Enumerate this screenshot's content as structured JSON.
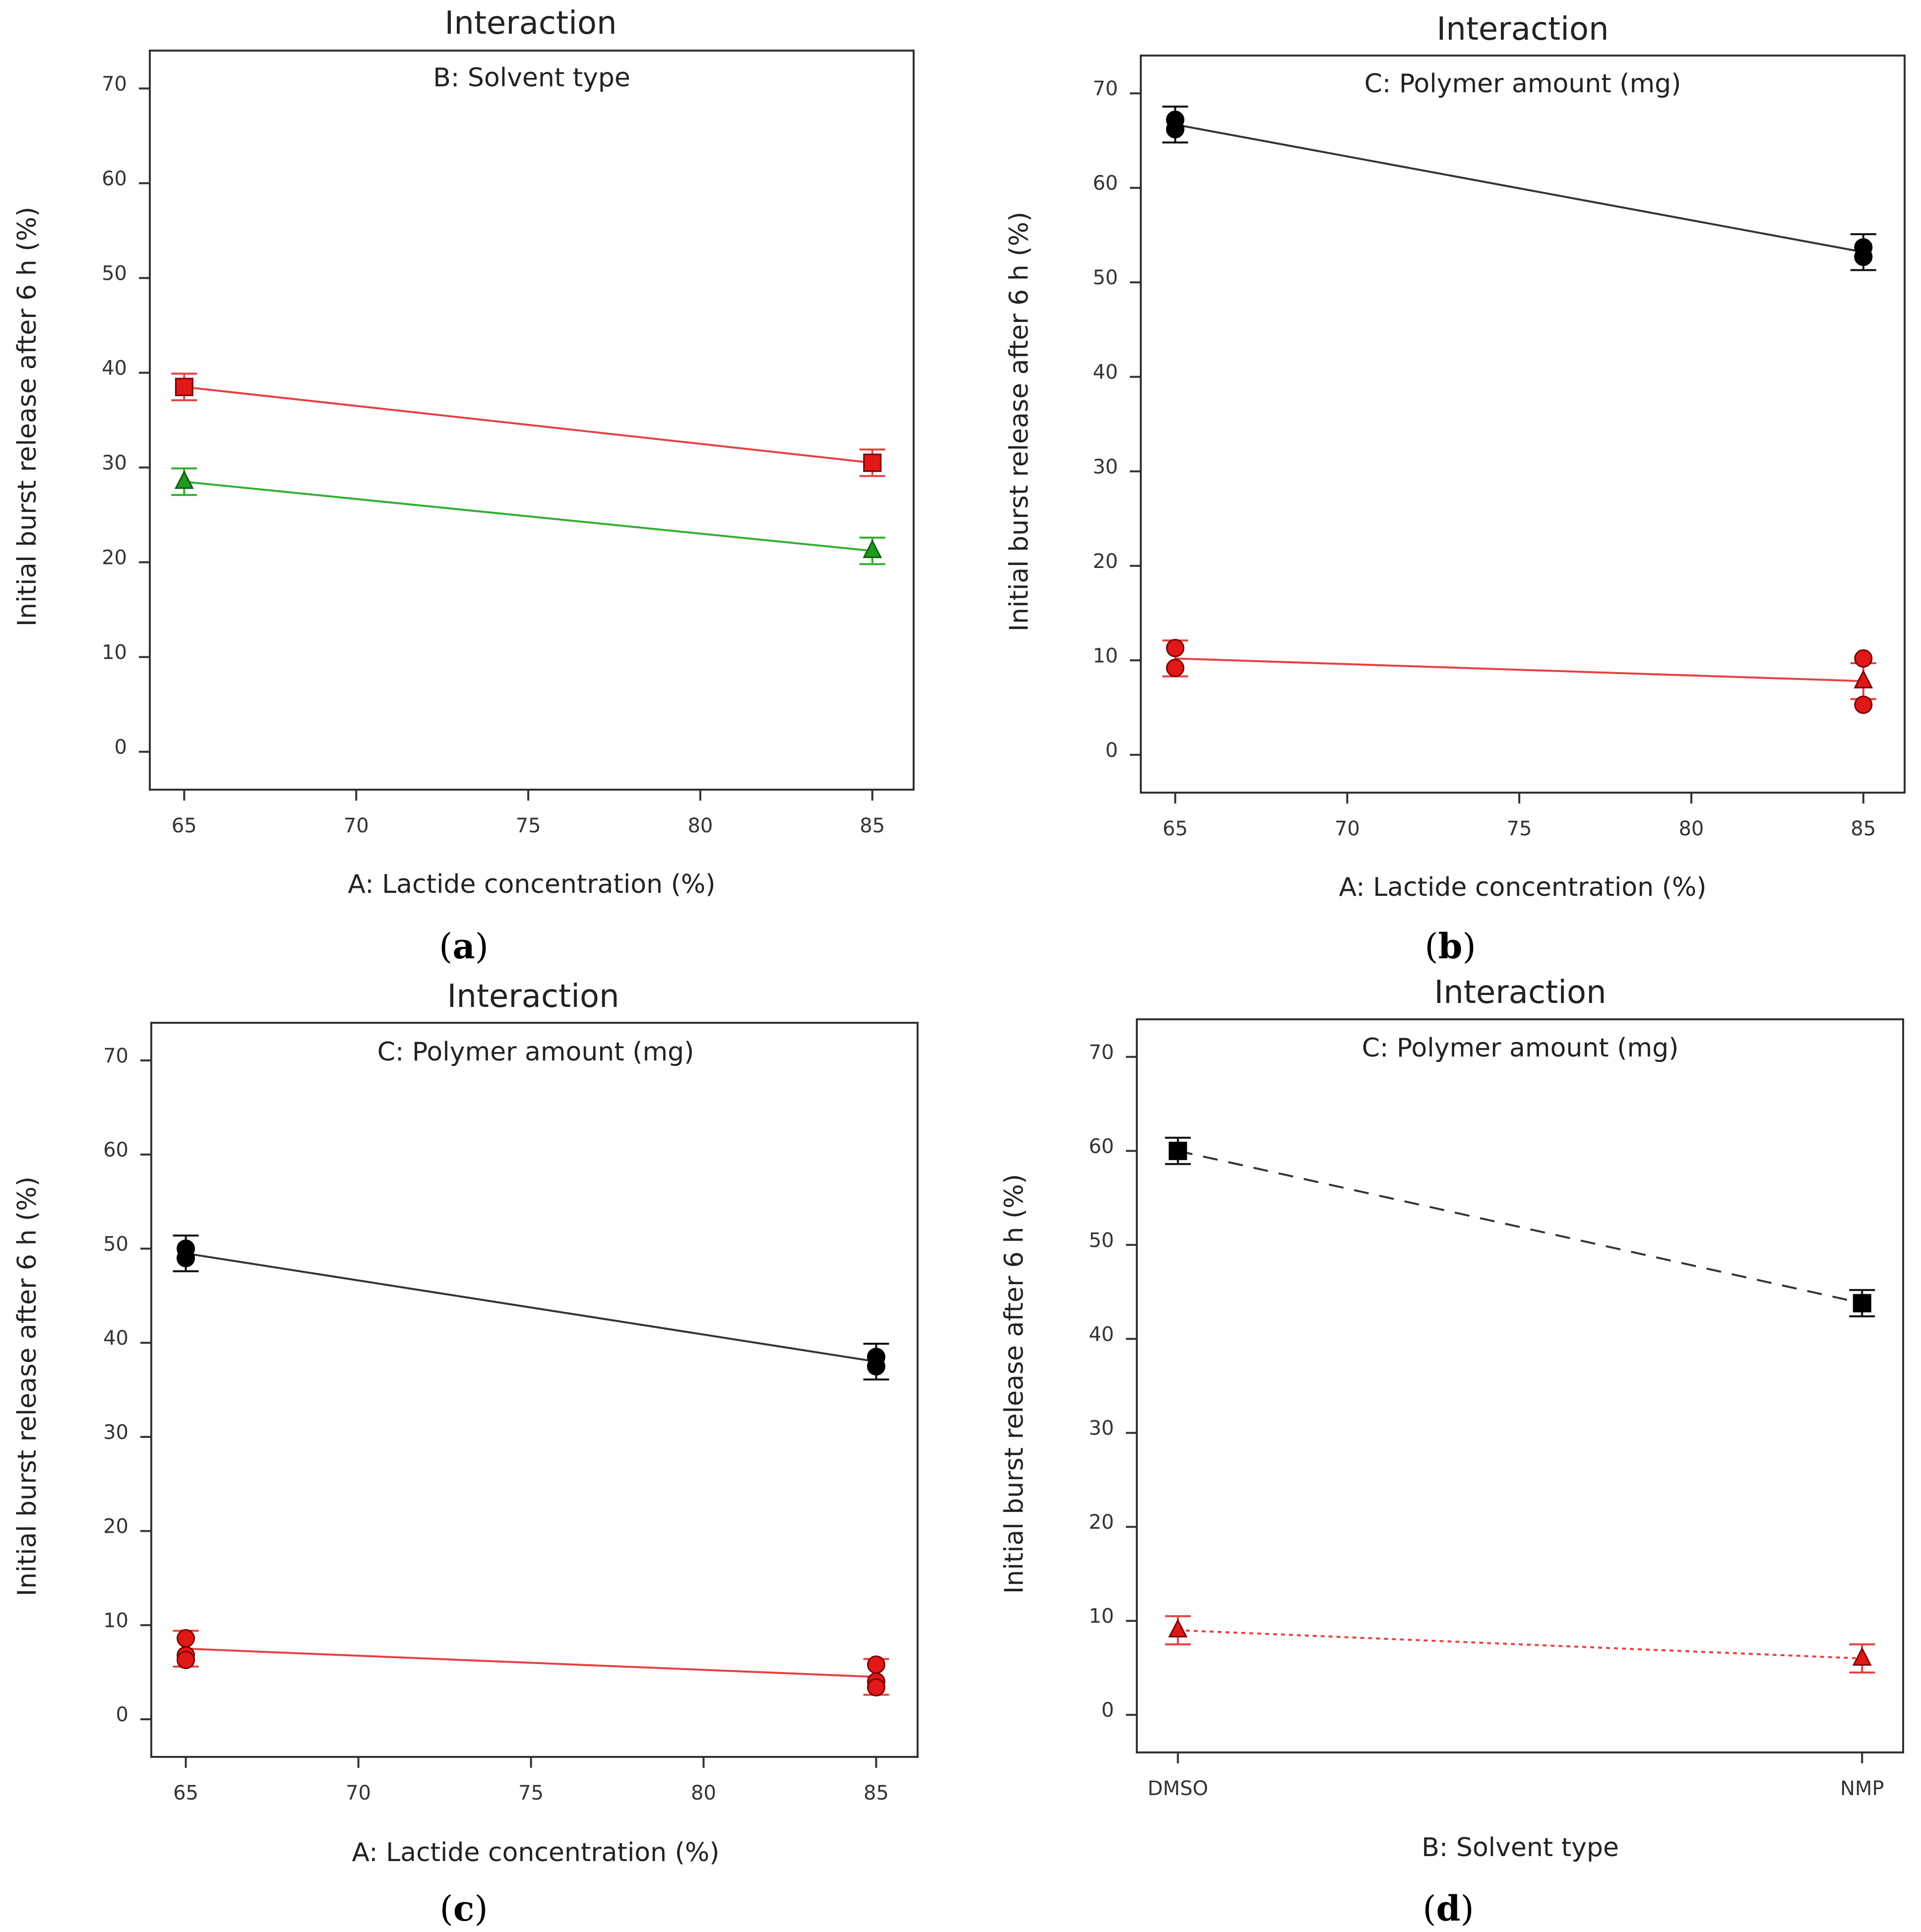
{
  "colors": {
    "black": "#111111",
    "red": "#e84040",
    "red_marker": "#dd1111",
    "green": "#2fb02f",
    "green_marker": "#1a8a1a",
    "grey_line": "#444444"
  },
  "chart_data": [
    {
      "panel": "a",
      "type": "line",
      "title": "Interaction",
      "subtitle": "B: Solvent type",
      "xlabel": "A: Lactide concentration (%)",
      "ylabel": "Initial burst release after 6 h (%)",
      "xlim": [
        64,
        86.2
      ],
      "xticks": [
        65,
        70,
        75,
        80,
        85
      ],
      "xtick_labels": [
        "65",
        "70",
        "75",
        "80",
        "85"
      ],
      "ylim": [
        -4,
        74
      ],
      "yticks": [
        0,
        10,
        20,
        30,
        40,
        50,
        60,
        70
      ],
      "ytick_labels": [
        "0",
        "10",
        "20",
        "30",
        "40",
        "50",
        "60",
        "70"
      ],
      "series": [
        {
          "name": "red",
          "color": "#e84040",
          "marker": "square",
          "dash": "",
          "x": [
            65,
            85
          ],
          "y": [
            38.5,
            30.5
          ],
          "err": [
            1.4,
            1.4
          ],
          "points": [
            {
              "x": 65,
              "y": 38.5
            },
            {
              "x": 85,
              "y": 30.5
            }
          ]
        },
        {
          "name": "green",
          "color": "#2fb02f",
          "marker": "triangle",
          "dash": "",
          "x": [
            65,
            85
          ],
          "y": [
            28.5,
            21.2
          ],
          "err": [
            1.4,
            1.4
          ],
          "points": [
            {
              "x": 65,
              "y": 28.5
            },
            {
              "x": 85,
              "y": 21.2
            }
          ]
        }
      ]
    },
    {
      "panel": "b",
      "type": "line",
      "title": "Interaction",
      "subtitle": "C: Polymer amount (mg)",
      "xlabel": "A: Lactide concentration (%)",
      "ylabel": "Initial burst release after 6 h (%)",
      "xlim": [
        64,
        86.2
      ],
      "xticks": [
        65,
        70,
        75,
        80,
        85
      ],
      "xtick_labels": [
        "65",
        "70",
        "75",
        "80",
        "85"
      ],
      "ylim": [
        -4,
        74
      ],
      "yticks": [
        0,
        10,
        20,
        30,
        40,
        50,
        60,
        70
      ],
      "ytick_labels": [
        "0",
        "10",
        "20",
        "30",
        "40",
        "50",
        "60",
        "70"
      ],
      "series": [
        {
          "name": "black",
          "color": "#111111",
          "marker": "circle",
          "dash": "",
          "x": [
            65,
            85
          ],
          "y": [
            66.7,
            53.2
          ],
          "err": [
            1.9,
            1.9
          ],
          "points": [
            {
              "x": 65,
              "y": 67.2
            },
            {
              "x": 65,
              "y": 66.2
            },
            {
              "x": 85,
              "y": 53.7
            },
            {
              "x": 85,
              "y": 52.7
            }
          ]
        },
        {
          "name": "red",
          "color": "#e84040",
          "marker": "circle",
          "dash": "",
          "x": [
            65,
            85
          ],
          "y": [
            10.2,
            7.8
          ],
          "err": [
            1.9,
            1.9
          ],
          "points": [
            {
              "x": 65,
              "y": 11.3
            },
            {
              "x": 65,
              "y": 9.2
            },
            {
              "x": 85,
              "y": 10.2
            },
            {
              "x": 85,
              "y": 5.3
            }
          ]
        },
        {
          "name": "red-triangle",
          "color": "#e84040",
          "marker": "triangle",
          "dash": "",
          "x": [],
          "y": [],
          "err": [],
          "points": [
            {
              "x": 85,
              "y": 7.8
            }
          ]
        }
      ]
    },
    {
      "panel": "c",
      "type": "line",
      "title": "Interaction",
      "subtitle": "C: Polymer amount (mg)",
      "xlabel": "A: Lactide concentration (%)",
      "ylabel": "Initial burst release after 6 h (%)",
      "xlim": [
        64,
        86.2
      ],
      "xticks": [
        65,
        70,
        75,
        80,
        85
      ],
      "xtick_labels": [
        "65",
        "70",
        "75",
        "80",
        "85"
      ],
      "ylim": [
        -4,
        74
      ],
      "yticks": [
        0,
        10,
        20,
        30,
        40,
        50,
        60,
        70
      ],
      "ytick_labels": [
        "0",
        "10",
        "20",
        "30",
        "40",
        "50",
        "60",
        "70"
      ],
      "series": [
        {
          "name": "black",
          "color": "#111111",
          "marker": "circle",
          "dash": "",
          "x": [
            65,
            85
          ],
          "y": [
            49.5,
            38.0
          ],
          "err": [
            1.9,
            1.9
          ],
          "points": [
            {
              "x": 65,
              "y": 50.0
            },
            {
              "x": 65,
              "y": 49.0
            },
            {
              "x": 85,
              "y": 38.5
            },
            {
              "x": 85,
              "y": 37.5
            }
          ]
        },
        {
          "name": "red",
          "color": "#e84040",
          "marker": "circle",
          "dash": "",
          "x": [
            65,
            85
          ],
          "y": [
            7.5,
            4.5
          ],
          "err": [
            1.9,
            1.9
          ],
          "points": [
            {
              "x": 65,
              "y": 8.6
            },
            {
              "x": 65,
              "y": 6.8
            },
            {
              "x": 65,
              "y": 6.3
            },
            {
              "x": 85,
              "y": 5.8
            },
            {
              "x": 85,
              "y": 4.0
            },
            {
              "x": 85,
              "y": 3.4
            }
          ]
        }
      ]
    },
    {
      "panel": "d",
      "type": "line",
      "title": "Interaction",
      "subtitle": "C: Polymer amount (mg)",
      "xlabel": "B: Solvent type",
      "ylabel": "Initial burst release after 6 h (%)",
      "xlim": [
        -0.06,
        1.06
      ],
      "xticks": [
        0,
        1
      ],
      "xtick_labels": [
        "DMSO",
        "NMP"
      ],
      "ylim": [
        -4,
        74
      ],
      "yticks": [
        0,
        10,
        20,
        30,
        40,
        50,
        60,
        70
      ],
      "ytick_labels": [
        "0",
        "10",
        "20",
        "30",
        "40",
        "50",
        "60",
        "70"
      ],
      "series": [
        {
          "name": "black",
          "color": "#111111",
          "marker": "square",
          "dash": "30,22",
          "x": [
            0,
            1
          ],
          "y": [
            60.0,
            43.8
          ],
          "err": [
            1.4,
            1.4
          ],
          "points": [
            {
              "x": 0,
              "y": 60.0
            },
            {
              "x": 1,
              "y": 43.8
            }
          ]
        },
        {
          "name": "red",
          "color": "#e84040",
          "marker": "triangle",
          "dash": "8,8",
          "x": [
            0,
            1
          ],
          "y": [
            9.0,
            6.0
          ],
          "err": [
            1.5,
            1.5
          ],
          "points": [
            {
              "x": 0,
              "y": 9.0
            },
            {
              "x": 1,
              "y": 6.0
            }
          ]
        }
      ]
    }
  ]
}
